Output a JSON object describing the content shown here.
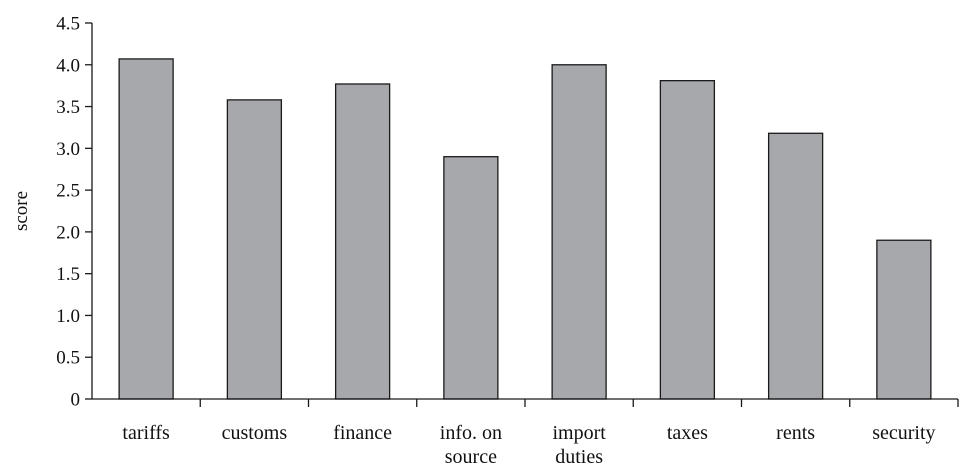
{
  "chart_data": {
    "type": "bar",
    "title": "",
    "xlabel": "",
    "ylabel": "score",
    "categories": [
      [
        "tariffs"
      ],
      [
        "customs"
      ],
      [
        "finance"
      ],
      [
        "info. on",
        "source"
      ],
      [
        "import",
        "duties"
      ],
      [
        "taxes"
      ],
      [
        "rents"
      ],
      [
        "security"
      ]
    ],
    "values": [
      4.07,
      3.58,
      3.77,
      2.9,
      4.0,
      3.81,
      3.18,
      1.9
    ],
    "ylim": [
      0,
      4.5
    ],
    "yticks": [
      "0",
      "0.5",
      "1.0",
      "1.5",
      "2.0",
      "2.5",
      "3.0",
      "3.5",
      "4.0",
      "4.5"
    ],
    "grid": false,
    "legend": "none",
    "colors": {
      "bar_fill": "#a7a8ab",
      "bar_stroke": "#1a1a1a",
      "axis": "#1a1a1a"
    }
  }
}
